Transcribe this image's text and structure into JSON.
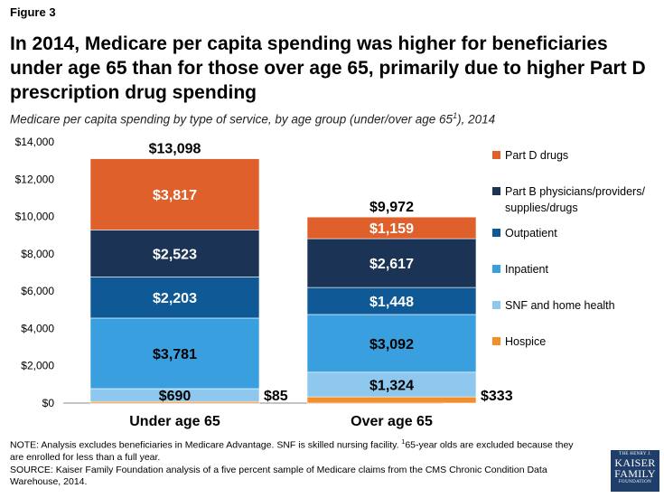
{
  "figure_label": "Figure 3",
  "chart_data": {
    "type": "bar",
    "stacked": true,
    "title": "In 2014, Medicare per capita spending was higher for beneficiaries under age 65 than for those over age 65, primarily due to higher Part D prescription drug spending",
    "subtitle_pre": "Medicare per capita spending by type of service, by age group (under/over age 65",
    "subtitle_sup": "1",
    "subtitle_post": "), 2014",
    "categories": [
      "Under age 65",
      "Over age 65"
    ],
    "totals": [
      13098,
      9972
    ],
    "total_labels": [
      "$13,098",
      "$9,972"
    ],
    "ylim": [
      0,
      14000
    ],
    "yticks": [
      0,
      2000,
      4000,
      6000,
      8000,
      10000,
      12000,
      14000
    ],
    "ytick_labels": [
      "$0",
      "$2,000",
      "$4,000",
      "$6,000",
      "$8,000",
      "$10,000",
      "$12,000",
      "$14,000"
    ],
    "legend_position": "right",
    "series": [
      {
        "name": "Hospice",
        "legend": [
          "Hospice"
        ],
        "color": "#f28e2b",
        "values": [
          85,
          333
        ],
        "labels": [
          "$85",
          "$333"
        ],
        "label_inside": false
      },
      {
        "name": "SNF and home health",
        "legend": [
          "SNF and home health"
        ],
        "color": "#8fc8ef",
        "values": [
          690,
          1324
        ],
        "labels": [
          "$690",
          "$1,324"
        ],
        "label_inside": true,
        "label_color": "#000000"
      },
      {
        "name": "Inpatient",
        "legend": [
          "Inpatient"
        ],
        "color": "#3a9fdf",
        "values": [
          3781,
          3092
        ],
        "labels": [
          "$3,781",
          "$3,092"
        ],
        "label_inside": true,
        "label_color": "#000000"
      },
      {
        "name": "Outpatient",
        "legend": [
          "Outpatient"
        ],
        "color": "#0f5a96",
        "values": [
          2203,
          1448
        ],
        "labels": [
          "$2,203",
          "$1,448"
        ],
        "label_inside": true,
        "label_color": "#ffffff"
      },
      {
        "name": "Part B physicians/providers/supplies/drugs",
        "legend": [
          "Part B physicians/providers/",
          "supplies/drugs"
        ],
        "color": "#1b3355",
        "values": [
          2523,
          2617
        ],
        "labels": [
          "$2,523",
          "$2,617"
        ],
        "label_inside": true,
        "label_color": "#ffffff"
      },
      {
        "name": "Part D drugs",
        "legend": [
          "Part D drugs"
        ],
        "color": "#e0602b",
        "values": [
          3817,
          1159
        ],
        "labels": [
          "$3,817",
          "$1,159"
        ],
        "label_inside": true,
        "label_color": "#ffffff"
      }
    ]
  },
  "note": {
    "line1_pre": "NOTE: Analysis excludes beneficiaries in Medicare Advantage. SNF is skilled nursing facility. ",
    "line1_sup": "1",
    "line1_post": "65-year olds are excluded because they are enrolled for less than a full year.",
    "source": "SOURCE: Kaiser Family Foundation analysis of a five percent sample of Medicare claims from the CMS Chronic Condition Data Warehouse, 2014."
  },
  "logo": {
    "line1": "THE HENRY J.",
    "line2": "KAISER",
    "line3": "FAMILY",
    "line4": "FOUNDATION"
  }
}
